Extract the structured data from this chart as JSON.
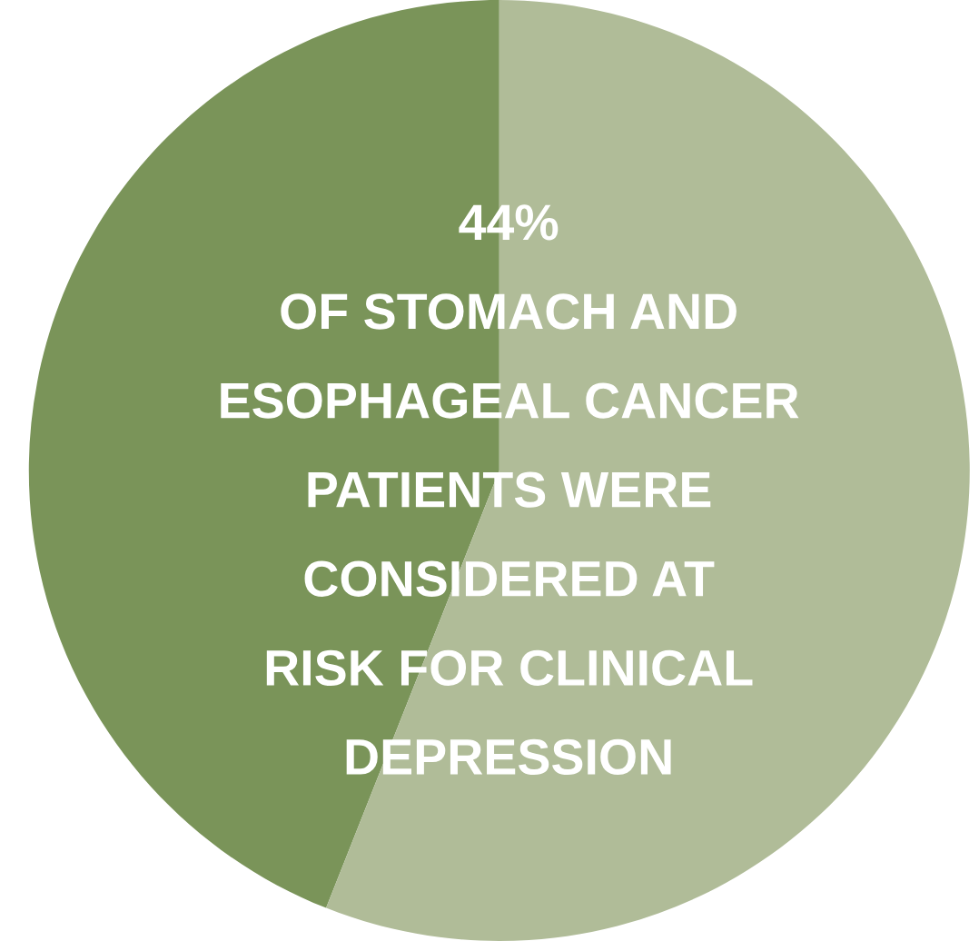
{
  "chart_data": {
    "type": "pie",
    "categories": [
      null,
      null
    ],
    "values": [
      44,
      56
    ],
    "colors": [
      "#7a9459",
      "#b0bc98"
    ],
    "annotations": [
      "44%\nOF STOMACH AND\nESOPHAGEAL CANCER\nPATIENTS WERE\nCONSIDERED AT\nRISK FOR CLINICAL\nDEPRESSION"
    ]
  }
}
